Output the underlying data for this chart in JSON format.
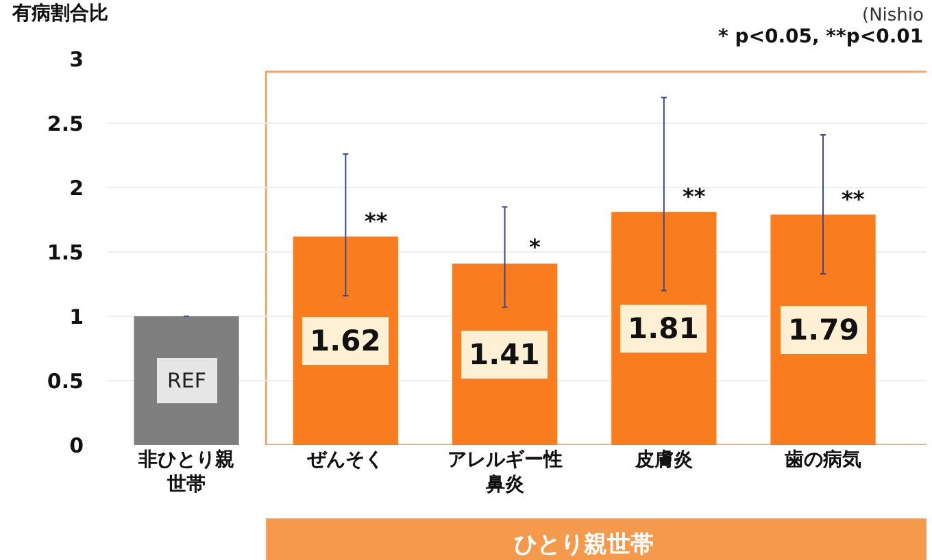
{
  "chart_data": {
    "type": "bar",
    "ylabel": "有病割合比",
    "categories": [
      "非ひとり親世帯",
      "ぜんそく",
      "アレルギー性鼻炎",
      "皮膚炎",
      "歯の病気"
    ],
    "values": [
      1,
      1.62,
      1.41,
      1.81,
      1.79
    ],
    "colors": [
      "#7f7f7f",
      "#f97c1e",
      "#f97c1e",
      "#f97c1e",
      "#f97c1e"
    ],
    "value_labels": [
      "REF",
      "1.62",
      "1.41",
      "1.81",
      "1.79"
    ],
    "errors": [
      null,
      [
        1.16,
        2.26
      ],
      [
        1.07,
        1.85
      ],
      [
        1.2,
        2.7
      ],
      [
        1.33,
        2.41
      ]
    ],
    "ylim": [
      0,
      3
    ],
    "yticks": [
      0,
      0.5,
      1,
      1.5,
      2,
      2.5,
      3
    ],
    "grid": "y",
    "annotations": [
      "(Nishio",
      "* p<0.05, **p<0.01",
      "ひとり親世帯",
      {
        "text": "**",
        "x": "ぜんそく",
        "y": 1.62
      },
      {
        "text": "*",
        "x": "アレルギー性鼻炎",
        "y": 1.41
      },
      {
        "text": "**",
        "x": "皮膚炎",
        "y": 1.81
      },
      {
        "text": "**",
        "x": "歯の病気",
        "y": 1.79
      }
    ]
  }
}
